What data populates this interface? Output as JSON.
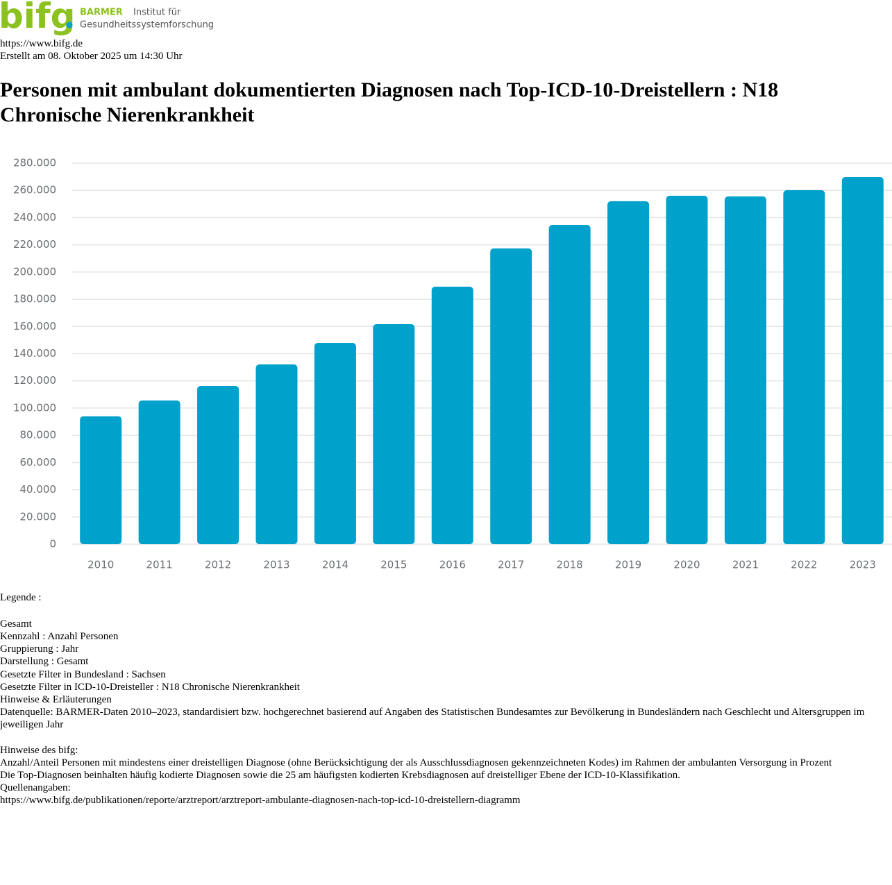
{
  "header": {
    "logo": "bifg",
    "brand": "BARMER",
    "institute_line1": "Institut für",
    "institute_line2": "Gesundheitssystemforschung",
    "url": "https://www.bifg.de",
    "created": "Erstellt am 08. Oktober 2025 um 14:30 Uhr",
    "title": "Personen mit ambulant dokumentierten Diagnosen nach Top-ICD-10-Dreistellern : N18 Chronische Nierenkrankheit"
  },
  "chart_data": {
    "type": "bar",
    "categories": [
      "2010",
      "2011",
      "2012",
      "2013",
      "2014",
      "2015",
      "2016",
      "2017",
      "2018",
      "2019",
      "2020",
      "2021",
      "2022",
      "2023"
    ],
    "values": [
      94000,
      105600,
      116300,
      132100,
      147900,
      161700,
      189200,
      217300,
      234600,
      252000,
      256000,
      255500,
      260100,
      269800
    ],
    "color": "#00a1cb",
    "ylim": [
      0,
      280000
    ],
    "yticks": [
      0,
      {
        "value": 20000,
        "label": "20.000"
      },
      {
        "value": 40000,
        "label": "40.000"
      },
      {
        "value": 60000,
        "label": "60.000"
      },
      {
        "value": 80000,
        "label": "80.000"
      },
      {
        "value": 100000,
        "label": "100.000"
      },
      {
        "value": 120000,
        "label": "120.000"
      },
      {
        "value": 140000,
        "label": "140.000"
      },
      {
        "value": 160000,
        "label": "160.000"
      },
      {
        "value": 180000,
        "label": "180.000"
      },
      {
        "value": 200000,
        "label": "200.000"
      },
      {
        "value": 220000,
        "label": "220.000"
      },
      {
        "value": 240000,
        "label": "240.000"
      },
      {
        "value": 260000,
        "label": "260.000"
      },
      {
        "value": 280000,
        "label": "280.000"
      }
    ],
    "grid": true
  },
  "legend": {
    "label": "Legende :",
    "series": "Gesamt"
  },
  "details": [
    "Kennzahl : Anzahl Personen",
    "Gruppierung : Jahr",
    "Darstellung : Gesamt",
    "Gesetzte Filter in Bundesland : Sachsen",
    "Gesetzte Filter in ICD-10-Dreisteller : N18 Chronische Nierenkrankheit",
    "Hinweise & Erläuterungen",
    "Datenquelle: BARMER-Daten 2010–2023, standardisiert bzw. hochgerechnet basierend auf Angaben des Statistischen Bundesamtes zur Bevölkerung in Bundesländern nach Geschlecht und Altersgruppen im jeweiligen Jahr"
  ],
  "notes": [
    "Hinweise des bifg:",
    "Anzahl/Anteil Personen mit mindestens einer dreistelligen Diagnose (ohne Berücksichtigung der als Ausschlussdiagnosen gekennzeichneten Kodes) im Rahmen der ambulanten Versorgung in Prozent",
    "Die Top-Diagnosen beinhalten häufig kodierte Diagnosen sowie die 25 am häufigsten kodierten Krebsdiagnosen auf dreistelliger Ebene der ICD-10-Klassifikation.",
    "Quellenangaben:",
    "https://www.bifg.de/publikationen/reporte/arztreport/arztreport-ambulante-diagnosen-nach-top-icd-10-dreistellern-diagramm"
  ]
}
